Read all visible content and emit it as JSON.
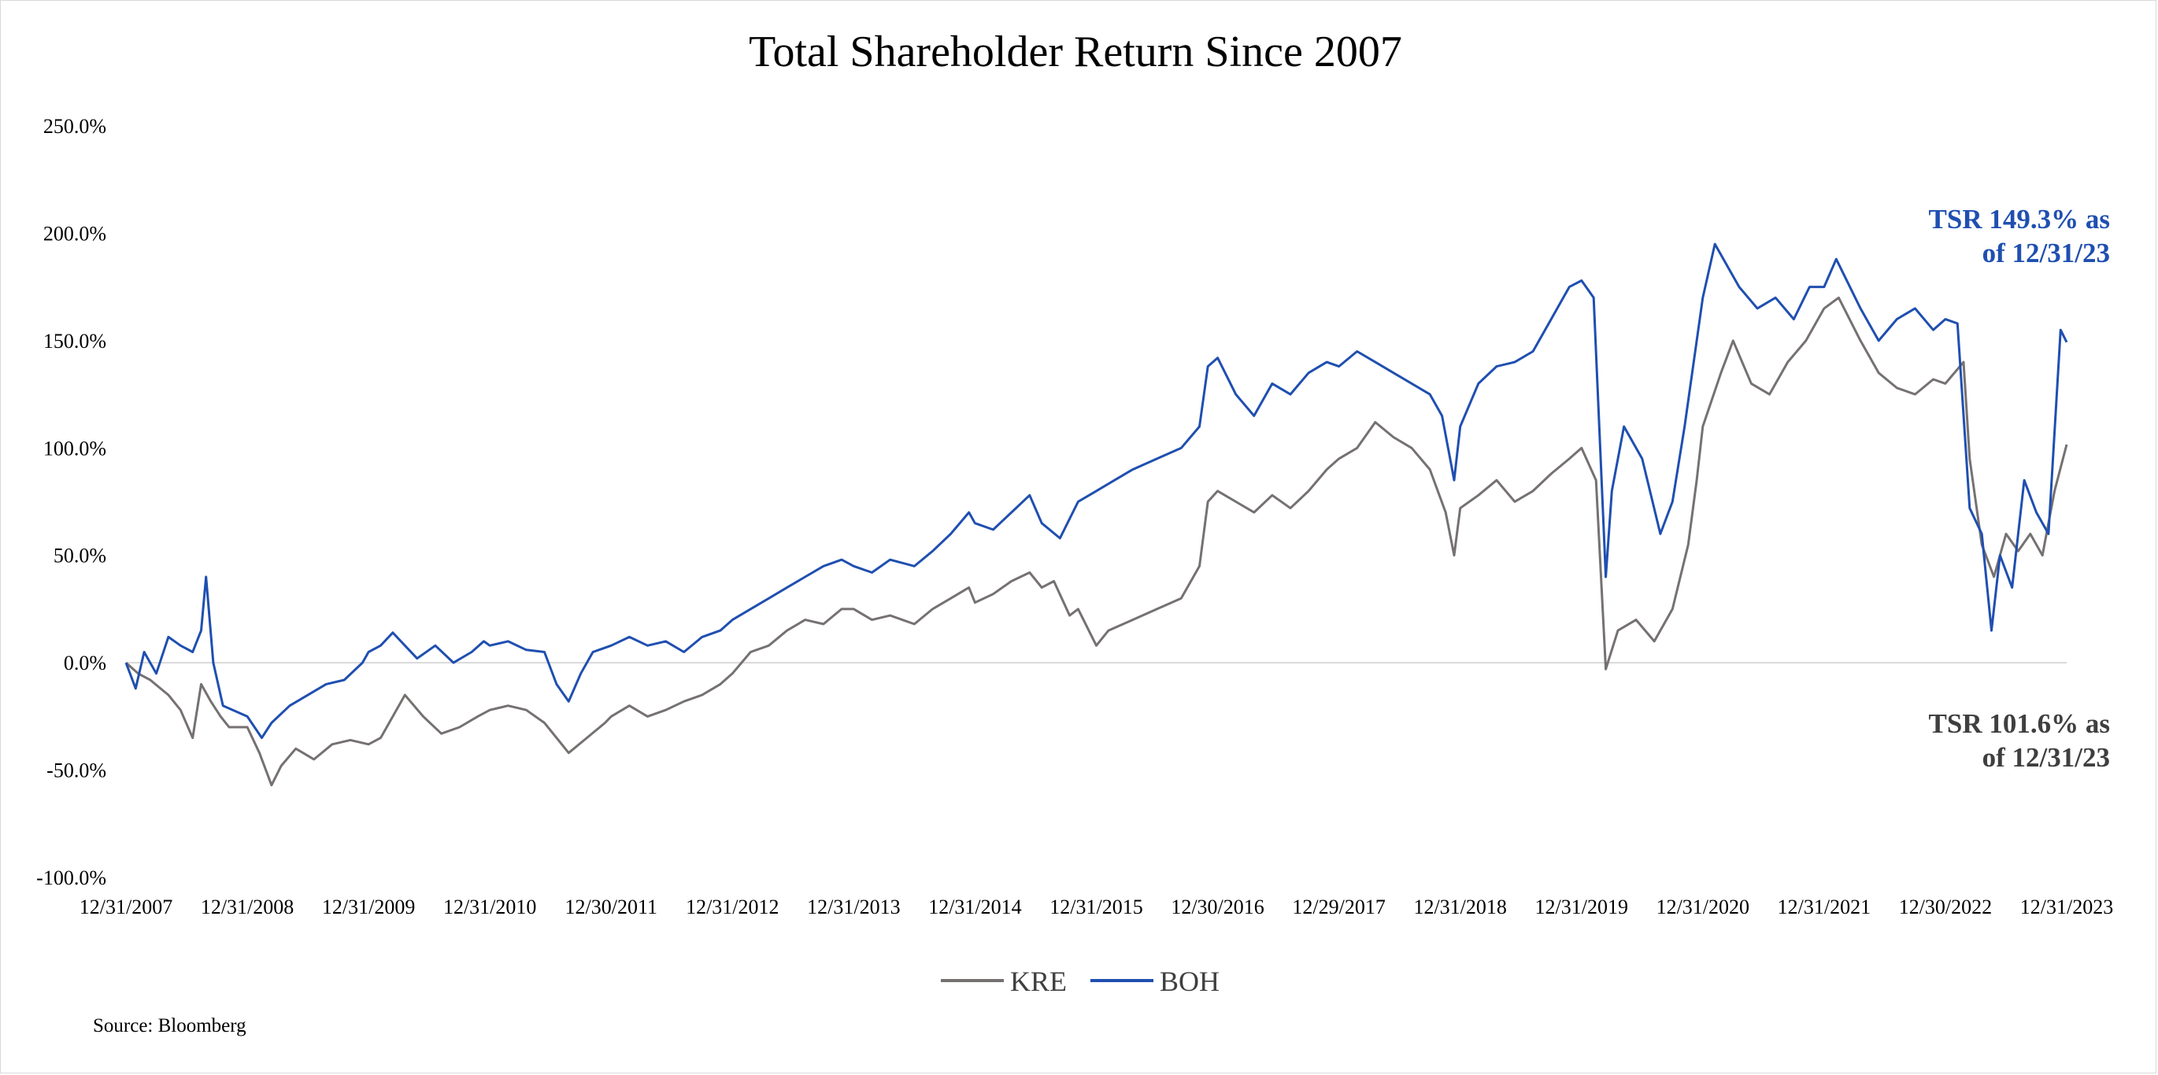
{
  "chart_data": {
    "type": "line",
    "title": "Total Shareholder Return Since 2007",
    "xlabel": "",
    "ylabel": "",
    "ylim": [
      -100,
      250
    ],
    "x_range": [
      2008.0,
      2024.0
    ],
    "y_ticks": [
      250,
      200,
      150,
      100,
      50,
      0,
      -50,
      -100
    ],
    "y_tick_labels": [
      "250.0%",
      "200.0%",
      "150.0%",
      "100.0%",
      "50.0%",
      "0.0%",
      "-50.0%",
      "-100.0%"
    ],
    "x_ticks": [
      2008,
      2009,
      2010,
      2011,
      2012,
      2013,
      2014,
      2015,
      2016,
      2017,
      2018,
      2019,
      2020,
      2021,
      2022,
      2023,
      2024
    ],
    "x_tick_labels": [
      "12/31/2007",
      "12/31/2008",
      "12/31/2009",
      "12/31/2010",
      "12/30/2011",
      "12/31/2012",
      "12/31/2013",
      "12/31/2014",
      "12/31/2015",
      "12/30/2016",
      "12/29/2017",
      "12/31/2018",
      "12/31/2019",
      "12/31/2020",
      "12/31/2021",
      "12/30/2022",
      "12/31/2023"
    ],
    "grid": false,
    "legend_position": "bottom-center",
    "series": [
      {
        "name": "KRE",
        "color": "#767171",
        "points": [
          [
            2008.0,
            0
          ],
          [
            2008.1,
            -5
          ],
          [
            2008.2,
            -8
          ],
          [
            2008.35,
            -15
          ],
          [
            2008.45,
            -22
          ],
          [
            2008.55,
            -35
          ],
          [
            2008.62,
            -10
          ],
          [
            2008.7,
            -18
          ],
          [
            2008.78,
            -25
          ],
          [
            2008.85,
            -30
          ],
          [
            2009.0,
            -30
          ],
          [
            2009.1,
            -42
          ],
          [
            2009.2,
            -57
          ],
          [
            2009.28,
            -48
          ],
          [
            2009.4,
            -40
          ],
          [
            2009.55,
            -45
          ],
          [
            2009.7,
            -38
          ],
          [
            2009.85,
            -36
          ],
          [
            2010.0,
            -38
          ],
          [
            2010.1,
            -35
          ],
          [
            2010.2,
            -25
          ],
          [
            2010.3,
            -15
          ],
          [
            2010.45,
            -25
          ],
          [
            2010.6,
            -33
          ],
          [
            2010.75,
            -30
          ],
          [
            2010.9,
            -25
          ],
          [
            2011.0,
            -22
          ],
          [
            2011.15,
            -20
          ],
          [
            2011.3,
            -22
          ],
          [
            2011.45,
            -28
          ],
          [
            2011.55,
            -35
          ],
          [
            2011.65,
            -42
          ],
          [
            2011.8,
            -35
          ],
          [
            2011.95,
            -28
          ],
          [
            2012.0,
            -25
          ],
          [
            2012.15,
            -20
          ],
          [
            2012.3,
            -25
          ],
          [
            2012.45,
            -22
          ],
          [
            2012.6,
            -18
          ],
          [
            2012.75,
            -15
          ],
          [
            2012.9,
            -10
          ],
          [
            2013.0,
            -5
          ],
          [
            2013.15,
            5
          ],
          [
            2013.3,
            8
          ],
          [
            2013.45,
            15
          ],
          [
            2013.6,
            20
          ],
          [
            2013.75,
            18
          ],
          [
            2013.9,
            25
          ],
          [
            2014.0,
            25
          ],
          [
            2014.15,
            20
          ],
          [
            2014.3,
            22
          ],
          [
            2014.5,
            18
          ],
          [
            2014.65,
            25
          ],
          [
            2014.8,
            30
          ],
          [
            2014.95,
            35
          ],
          [
            2015.0,
            28
          ],
          [
            2015.15,
            32
          ],
          [
            2015.3,
            38
          ],
          [
            2015.45,
            42
          ],
          [
            2015.55,
            35
          ],
          [
            2015.65,
            38
          ],
          [
            2015.78,
            22
          ],
          [
            2015.85,
            25
          ],
          [
            2016.0,
            8
          ],
          [
            2016.1,
            15
          ],
          [
            2016.3,
            20
          ],
          [
            2016.5,
            25
          ],
          [
            2016.7,
            30
          ],
          [
            2016.85,
            45
          ],
          [
            2016.92,
            75
          ],
          [
            2017.0,
            80
          ],
          [
            2017.15,
            75
          ],
          [
            2017.3,
            70
          ],
          [
            2017.45,
            78
          ],
          [
            2017.6,
            72
          ],
          [
            2017.75,
            80
          ],
          [
            2017.9,
            90
          ],
          [
            2018.0,
            95
          ],
          [
            2018.15,
            100
          ],
          [
            2018.3,
            112
          ],
          [
            2018.45,
            105
          ],
          [
            2018.6,
            100
          ],
          [
            2018.75,
            90
          ],
          [
            2018.88,
            70
          ],
          [
            2018.95,
            50
          ],
          [
            2019.0,
            72
          ],
          [
            2019.15,
            78
          ],
          [
            2019.3,
            85
          ],
          [
            2019.45,
            75
          ],
          [
            2019.6,
            80
          ],
          [
            2019.75,
            88
          ],
          [
            2019.9,
            95
          ],
          [
            2020.0,
            100
          ],
          [
            2020.12,
            85
          ],
          [
            2020.2,
            -3
          ],
          [
            2020.3,
            15
          ],
          [
            2020.45,
            20
          ],
          [
            2020.6,
            10
          ],
          [
            2020.75,
            25
          ],
          [
            2020.88,
            55
          ],
          [
            2020.95,
            85
          ],
          [
            2021.0,
            110
          ],
          [
            2021.15,
            135
          ],
          [
            2021.25,
            150
          ],
          [
            2021.4,
            130
          ],
          [
            2021.55,
            125
          ],
          [
            2021.7,
            140
          ],
          [
            2021.85,
            150
          ],
          [
            2022.0,
            165
          ],
          [
            2022.12,
            170
          ],
          [
            2022.3,
            150
          ],
          [
            2022.45,
            135
          ],
          [
            2022.6,
            128
          ],
          [
            2022.75,
            125
          ],
          [
            2022.9,
            132
          ],
          [
            2023.0,
            130
          ],
          [
            2023.15,
            140
          ],
          [
            2023.2,
            95
          ],
          [
            2023.3,
            55
          ],
          [
            2023.4,
            40
          ],
          [
            2023.5,
            60
          ],
          [
            2023.6,
            52
          ],
          [
            2023.7,
            60
          ],
          [
            2023.8,
            50
          ],
          [
            2023.9,
            80
          ],
          [
            2024.0,
            101.6
          ]
        ]
      },
      {
        "name": "BOH",
        "color": "#1f4fb0",
        "points": [
          [
            2008.0,
            0
          ],
          [
            2008.08,
            -12
          ],
          [
            2008.15,
            5
          ],
          [
            2008.25,
            -5
          ],
          [
            2008.35,
            12
          ],
          [
            2008.45,
            8
          ],
          [
            2008.55,
            5
          ],
          [
            2008.62,
            15
          ],
          [
            2008.66,
            40
          ],
          [
            2008.72,
            0
          ],
          [
            2008.8,
            -20
          ],
          [
            2009.0,
            -25
          ],
          [
            2009.12,
            -35
          ],
          [
            2009.2,
            -28
          ],
          [
            2009.35,
            -20
          ],
          [
            2009.5,
            -15
          ],
          [
            2009.65,
            -10
          ],
          [
            2009.8,
            -8
          ],
          [
            2009.95,
            0
          ],
          [
            2010.0,
            5
          ],
          [
            2010.1,
            8
          ],
          [
            2010.2,
            14
          ],
          [
            2010.3,
            8
          ],
          [
            2010.4,
            2
          ],
          [
            2010.55,
            8
          ],
          [
            2010.7,
            0
          ],
          [
            2010.85,
            5
          ],
          [
            2010.95,
            10
          ],
          [
            2011.0,
            8
          ],
          [
            2011.15,
            10
          ],
          [
            2011.3,
            6
          ],
          [
            2011.45,
            5
          ],
          [
            2011.55,
            -10
          ],
          [
            2011.65,
            -18
          ],
          [
            2011.75,
            -5
          ],
          [
            2011.85,
            5
          ],
          [
            2012.0,
            8
          ],
          [
            2012.15,
            12
          ],
          [
            2012.3,
            8
          ],
          [
            2012.45,
            10
          ],
          [
            2012.6,
            5
          ],
          [
            2012.75,
            12
          ],
          [
            2012.9,
            15
          ],
          [
            2013.0,
            20
          ],
          [
            2013.15,
            25
          ],
          [
            2013.3,
            30
          ],
          [
            2013.45,
            35
          ],
          [
            2013.6,
            40
          ],
          [
            2013.75,
            45
          ],
          [
            2013.9,
            48
          ],
          [
            2014.0,
            45
          ],
          [
            2014.15,
            42
          ],
          [
            2014.3,
            48
          ],
          [
            2014.5,
            45
          ],
          [
            2014.65,
            52
          ],
          [
            2014.8,
            60
          ],
          [
            2014.95,
            70
          ],
          [
            2015.0,
            65
          ],
          [
            2015.15,
            62
          ],
          [
            2015.3,
            70
          ],
          [
            2015.45,
            78
          ],
          [
            2015.55,
            65
          ],
          [
            2015.7,
            58
          ],
          [
            2015.85,
            75
          ],
          [
            2016.0,
            80
          ],
          [
            2016.15,
            85
          ],
          [
            2016.3,
            90
          ],
          [
            2016.5,
            95
          ],
          [
            2016.7,
            100
          ],
          [
            2016.85,
            110
          ],
          [
            2016.92,
            138
          ],
          [
            2017.0,
            142
          ],
          [
            2017.15,
            125
          ],
          [
            2017.3,
            115
          ],
          [
            2017.45,
            130
          ],
          [
            2017.6,
            125
          ],
          [
            2017.75,
            135
          ],
          [
            2017.9,
            140
          ],
          [
            2018.0,
            138
          ],
          [
            2018.15,
            145
          ],
          [
            2018.3,
            140
          ],
          [
            2018.45,
            135
          ],
          [
            2018.6,
            130
          ],
          [
            2018.75,
            125
          ],
          [
            2018.85,
            115
          ],
          [
            2018.95,
            85
          ],
          [
            2019.0,
            110
          ],
          [
            2019.15,
            130
          ],
          [
            2019.3,
            138
          ],
          [
            2019.45,
            140
          ],
          [
            2019.6,
            145
          ],
          [
            2019.75,
            160
          ],
          [
            2019.9,
            175
          ],
          [
            2020.0,
            178
          ],
          [
            2020.1,
            170
          ],
          [
            2020.2,
            40
          ],
          [
            2020.25,
            80
          ],
          [
            2020.35,
            110
          ],
          [
            2020.5,
            95
          ],
          [
            2020.65,
            60
          ],
          [
            2020.75,
            75
          ],
          [
            2020.85,
            110
          ],
          [
            2020.95,
            150
          ],
          [
            2021.0,
            170
          ],
          [
            2021.1,
            195
          ],
          [
            2021.2,
            185
          ],
          [
            2021.3,
            175
          ],
          [
            2021.45,
            165
          ],
          [
            2021.6,
            170
          ],
          [
            2021.75,
            160
          ],
          [
            2021.88,
            175
          ],
          [
            2022.0,
            175
          ],
          [
            2022.1,
            188
          ],
          [
            2022.3,
            165
          ],
          [
            2022.45,
            150
          ],
          [
            2022.6,
            160
          ],
          [
            2022.75,
            165
          ],
          [
            2022.9,
            155
          ],
          [
            2023.0,
            160
          ],
          [
            2023.1,
            158
          ],
          [
            2023.2,
            72
          ],
          [
            2023.3,
            60
          ],
          [
            2023.38,
            15
          ],
          [
            2023.45,
            50
          ],
          [
            2023.55,
            35
          ],
          [
            2023.65,
            85
          ],
          [
            2023.75,
            70
          ],
          [
            2023.85,
            60
          ],
          [
            2023.95,
            155
          ],
          [
            2024.0,
            149.3
          ]
        ]
      }
    ],
    "annotations": [
      {
        "series": "BOH",
        "lines": [
          "TSR 149.3% as",
          "of 12/31/23"
        ],
        "color": "#1f4fb0"
      },
      {
        "series": "KRE",
        "lines": [
          "TSR 101.6% as",
          "of 12/31/23"
        ],
        "color": "#3f3f3f"
      }
    ],
    "source": "Source: Bloomberg"
  }
}
